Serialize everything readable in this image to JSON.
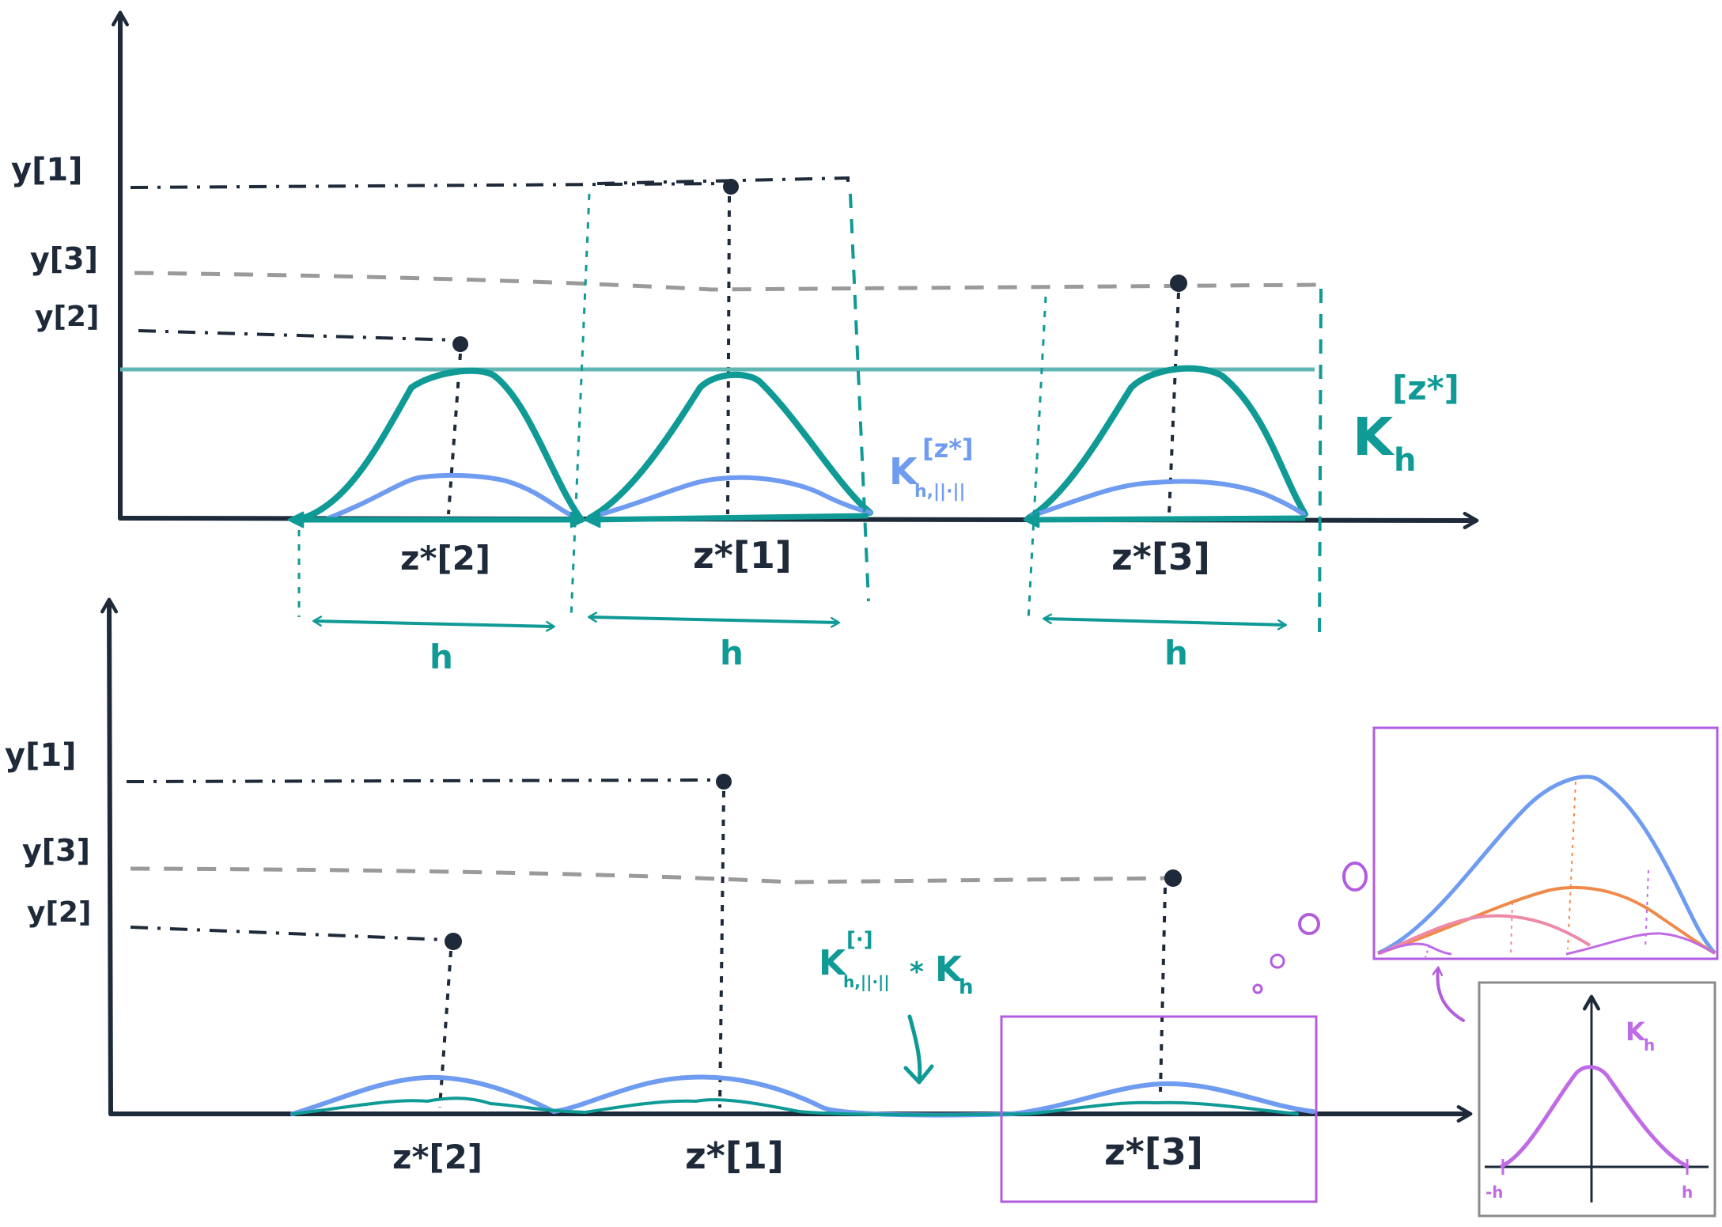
{
  "colors": {
    "axis": "#1e2a3a",
    "kernel_teal": "#0f9a96",
    "threshold_line": "#5fb6b2",
    "kernel_blue": "#6f9cf0",
    "gray_dash": "#9a9a9a",
    "highlight_box": "#b25de0",
    "inset_orange": "#ef8a4a",
    "inset_pink": "#ee8aa8",
    "inset_box_gray": "#8c8c8c"
  },
  "top_panel": {
    "y_labels": {
      "y1": "y[1]",
      "y3": "y[3]",
      "y2": "y[2]"
    },
    "z_labels": {
      "z2": "z*[2]",
      "z1": "z*[1]",
      "z3": "z*[3]"
    },
    "bandwidth_label": "h",
    "big_kernel": {
      "base": "K",
      "sub": "h",
      "sup": "[z*]"
    },
    "small_kernel": {
      "base": "K",
      "sub": "h,||·||",
      "sup": "[z*]"
    }
  },
  "bottom_panel": {
    "y_labels": {
      "y1": "y[1]",
      "y3": "y[3]",
      "y2": "y[2]"
    },
    "z_labels": {
      "z2": "z*[2]",
      "z1": "z*[1]",
      "z3": "z*[3]"
    },
    "convolution": {
      "left_base": "K",
      "left_sup": "[·]",
      "left_sub": "h,||·||",
      "op": "*",
      "right_base": "K",
      "right_sub": "h"
    }
  },
  "inset": {
    "kernel_label": {
      "base": "K",
      "sub": "h"
    },
    "tick_left": "-h",
    "tick_right": "h"
  }
}
